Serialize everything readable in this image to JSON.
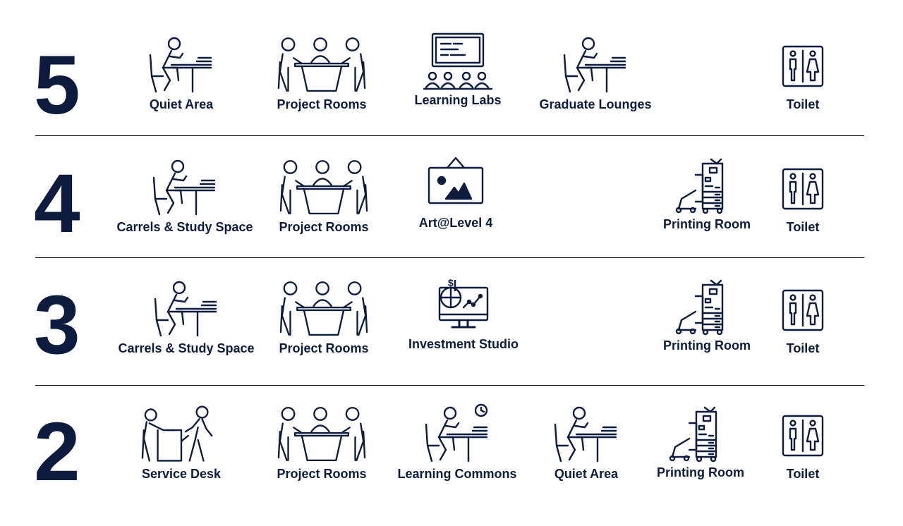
{
  "colors": {
    "ink": "#0d1b3e"
  },
  "floors": [
    {
      "level": "5",
      "facilities": [
        {
          "label": "Quiet Area",
          "icon": "desk-person-icon"
        },
        {
          "label": "Project Rooms",
          "icon": "meeting-group-icon"
        },
        {
          "label": "Learning Labs",
          "icon": "classroom-board-icon"
        },
        {
          "label": "Graduate Lounges",
          "icon": "desk-person-icon"
        },
        {
          "label": "Toilet",
          "icon": "restroom-icon"
        }
      ]
    },
    {
      "level": "4",
      "facilities": [
        {
          "label": "Carrels & Study Space",
          "icon": "desk-person-icon"
        },
        {
          "label": "Project Rooms",
          "icon": "meeting-group-icon"
        },
        {
          "label": "Art@Level 4",
          "icon": "art-frame-icon"
        },
        {
          "label": "Printing Room",
          "icon": "printer-icon"
        },
        {
          "label": "Toilet",
          "icon": "restroom-icon"
        }
      ]
    },
    {
      "level": "3",
      "facilities": [
        {
          "label": "Carrels & Study Space",
          "icon": "desk-person-icon"
        },
        {
          "label": "Project Rooms",
          "icon": "meeting-group-icon"
        },
        {
          "label": "Investment Studio",
          "icon": "finance-monitor-icon"
        },
        {
          "label": "Printing Room",
          "icon": "printer-icon"
        },
        {
          "label": "Toilet",
          "icon": "restroom-icon"
        }
      ]
    },
    {
      "level": "2",
      "facilities": [
        {
          "label": "Service Desk",
          "icon": "service-desk-icon"
        },
        {
          "label": "Project Rooms",
          "icon": "meeting-group-icon"
        },
        {
          "label": "Learning Commons",
          "icon": "desk-clock-icon"
        },
        {
          "label": "Quiet Area",
          "icon": "desk-person-icon"
        },
        {
          "label": "Printing Room",
          "icon": "printer-icon"
        },
        {
          "label": "Toilet",
          "icon": "restroom-icon"
        }
      ]
    }
  ]
}
